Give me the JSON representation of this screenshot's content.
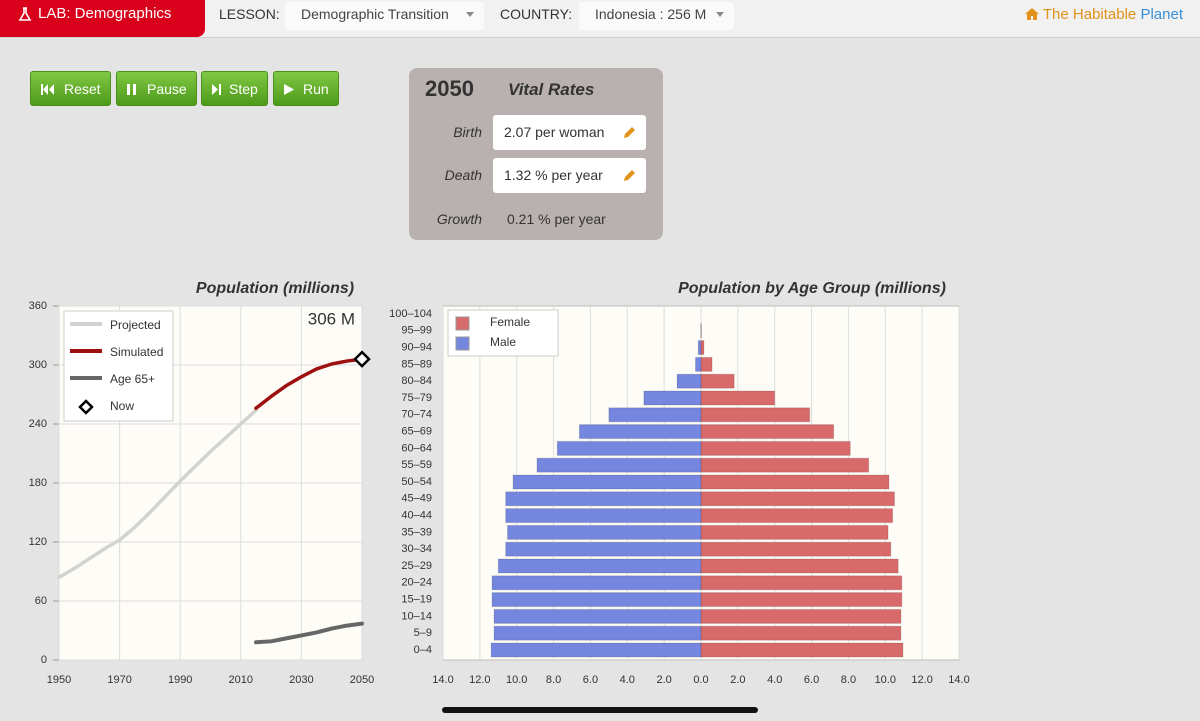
{
  "header": {
    "lab": "LAB: Demographics",
    "lesson_label": "LESSON:",
    "lesson": "Demographic Transition",
    "country_label": "COUNTRY:",
    "country": "Indonesia : 256 M",
    "brand": [
      "The Habitable",
      "Planet"
    ]
  },
  "controls": [
    "Reset",
    "Pause",
    "Step",
    "Run"
  ],
  "vital_rates": {
    "year": "2050",
    "title": "Vital Rates",
    "rows": [
      {
        "label": "Birth",
        "value": "2.07 per woman"
      },
      {
        "label": "Death",
        "value": "1.32 % per year"
      },
      {
        "label": "Growth",
        "value": "0.21 % per year"
      }
    ]
  },
  "chart_data": [
    {
      "type": "line",
      "title": "Population (millions)",
      "annotation": "306 M",
      "x": [
        1950,
        1955,
        1960,
        1965,
        1970,
        1975,
        1980,
        1985,
        1990,
        1995,
        2000,
        2005,
        2010,
        2015,
        2020,
        2025,
        2030,
        2035,
        2040,
        2045,
        2050
      ],
      "xlim": [
        1950,
        2050
      ],
      "xticks": [
        1950,
        1970,
        1990,
        2010,
        2030,
        2050
      ],
      "ylim": [
        0,
        360
      ],
      "yticks": [
        0,
        60,
        120,
        180,
        240,
        300,
        360
      ],
      "grid": true,
      "series": [
        {
          "name": "Projected",
          "color": "#d2d2d2",
          "values": [
            84,
            93,
            103,
            113,
            122,
            135,
            150,
            166,
            182,
            197,
            212,
            226,
            240,
            254,
            null,
            null,
            null,
            null,
            null,
            null,
            null
          ]
        },
        {
          "name": "Simulated",
          "color": "#9e1010",
          "values": [
            null,
            null,
            null,
            null,
            null,
            null,
            null,
            null,
            null,
            null,
            null,
            null,
            null,
            256,
            268,
            279,
            288,
            296,
            301,
            304,
            306
          ]
        },
        {
          "name": "Age 65+",
          "color": "#666666",
          "values": [
            null,
            null,
            null,
            null,
            null,
            null,
            null,
            null,
            null,
            null,
            null,
            null,
            null,
            18,
            19,
            22,
            25,
            28,
            32,
            35,
            37
          ]
        },
        {
          "name": "Now",
          "color": "#000000",
          "marker": "diamond",
          "values": [
            null,
            null,
            null,
            null,
            null,
            null,
            null,
            null,
            null,
            null,
            null,
            null,
            null,
            null,
            null,
            null,
            null,
            null,
            null,
            null,
            306
          ]
        }
      ]
    },
    {
      "type": "bar",
      "orientation": "horizontal",
      "title": "Population by Age Group (millions)",
      "categories": [
        "0–4",
        "5–9",
        "10–14",
        "15–19",
        "20–24",
        "25–29",
        "30–34",
        "35–39",
        "40–44",
        "45–49",
        "50–54",
        "55–59",
        "60–64",
        "65–69",
        "70–74",
        "75–79",
        "80–84",
        "85–89",
        "90–94",
        "95–99",
        "100–104"
      ],
      "xlim": [
        -14,
        14
      ],
      "xticks": [
        {
          "value": -14,
          "label": "14.0"
        },
        {
          "value": -12,
          "label": "12.0"
        },
        {
          "value": -10,
          "label": "10.0"
        },
        {
          "value": -8,
          "label": "8.0"
        },
        {
          "value": -6,
          "label": "6.0"
        },
        {
          "value": -4,
          "label": "4.0"
        },
        {
          "value": -2,
          "label": "2.0"
        },
        {
          "value": 0,
          "label": "0.0"
        },
        {
          "value": 2,
          "label": "2.0"
        },
        {
          "value": 4,
          "label": "4.0"
        },
        {
          "value": 6,
          "label": "6.0"
        },
        {
          "value": 8,
          "label": "8.0"
        },
        {
          "value": 10,
          "label": "10.0"
        },
        {
          "value": 12,
          "label": "12.0"
        },
        {
          "value": 14,
          "label": "14.0"
        }
      ],
      "grid": true,
      "series": [
        {
          "name": "Female",
          "color": "#d96a6b",
          "side": "right",
          "values": [
            10.96,
            10.85,
            10.85,
            10.9,
            10.9,
            10.7,
            10.3,
            10.15,
            10.4,
            10.5,
            10.2,
            9.1,
            8.1,
            7.2,
            5.9,
            4.0,
            1.8,
            0.6,
            0.16,
            0.02,
            0
          ]
        },
        {
          "name": "Male",
          "color": "#7486de",
          "side": "left",
          "values": [
            11.39,
            11.23,
            11.23,
            11.34,
            11.34,
            11.0,
            10.6,
            10.5,
            10.6,
            10.6,
            10.2,
            8.9,
            7.8,
            6.6,
            5.0,
            3.1,
            1.3,
            0.3,
            0.15,
            0.01,
            0
          ]
        }
      ]
    }
  ]
}
